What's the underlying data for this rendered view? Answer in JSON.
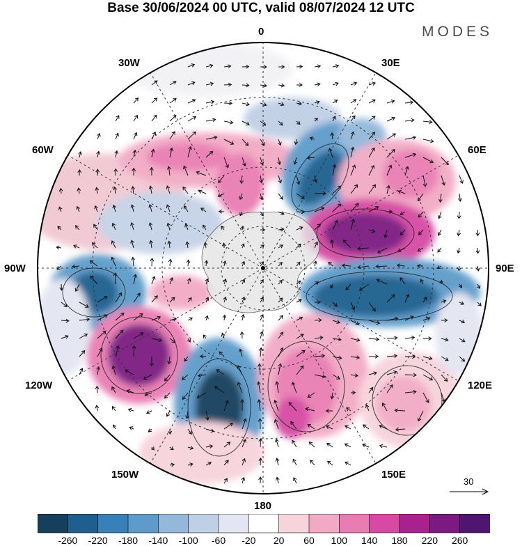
{
  "header": {
    "title": "Base 30/06/2024 00 UTC, valid 08/07/2024 12 UTC",
    "brand": "MODES"
  },
  "map": {
    "projection": "south-polar-stereographic",
    "longitude_labels": {
      "top": "0",
      "top_right": "30E",
      "upper_right": "60E",
      "right": "90E",
      "lower_right": "120E",
      "bottom_right": "150E",
      "bottom": "180",
      "bottom_left": "150W",
      "lower_left": "120W",
      "left": "90W",
      "upper_left": "60W",
      "top_left": "30W"
    },
    "reference_vector_label": "30"
  },
  "colorbar": {
    "tick_labels": [
      "-260",
      "-220",
      "-180",
      "-140",
      "-100",
      "-60",
      "-20",
      "20",
      "60",
      "100",
      "140",
      "180",
      "220",
      "260"
    ],
    "colors": [
      "#163f5d",
      "#1e5f8f",
      "#3a80b8",
      "#5d9bca",
      "#93b8da",
      "#bfcfe5",
      "#e3e6f2",
      "#ffffff",
      "#f7d3dc",
      "#f2aac4",
      "#e97db3",
      "#d64aa3",
      "#a8218f",
      "#7b1a82",
      "#4e1571"
    ]
  }
}
